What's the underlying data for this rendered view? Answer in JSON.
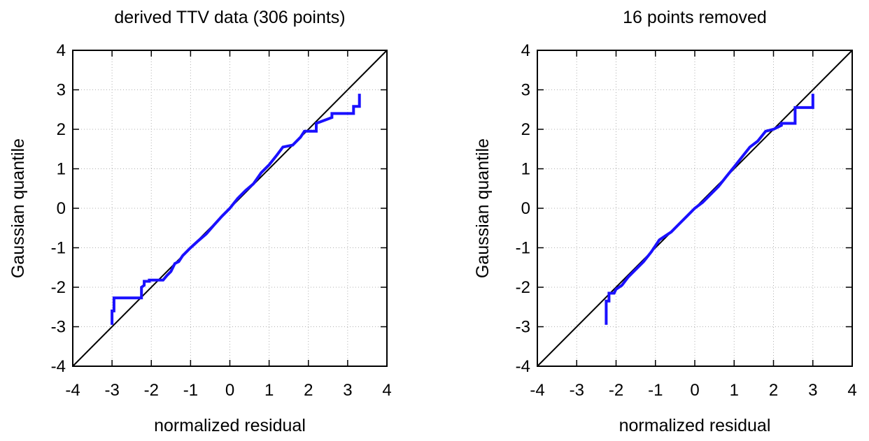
{
  "chart_data": [
    {
      "type": "line",
      "title": "derived TTV data (306 points)",
      "xlabel": "normalized residual",
      "ylabel": "Gaussian quantile",
      "xlim": [
        -4,
        4
      ],
      "ylim": [
        -4,
        4
      ],
      "xticks": [
        "-4",
        "-3",
        "-2",
        "-1",
        "0",
        "1",
        "2",
        "3",
        "4"
      ],
      "yticks": [
        "-4",
        "-3",
        "-2",
        "-1",
        "0",
        "1",
        "2",
        "3",
        "4"
      ],
      "grid": true,
      "reference_line": {
        "from": [
          -4,
          -4
        ],
        "to": [
          4,
          4
        ],
        "color": "#000000"
      },
      "series": [
        {
          "color": "#1a10ff",
          "points": [
            [
              -3.0,
              -2.95
            ],
            [
              -3.0,
              -2.6
            ],
            [
              -2.95,
              -2.6
            ],
            [
              -2.95,
              -2.27
            ],
            [
              -2.25,
              -2.27
            ],
            [
              -2.25,
              -2.0
            ],
            [
              -2.18,
              -1.95
            ],
            [
              -2.18,
              -1.85
            ],
            [
              -2.05,
              -1.85
            ],
            [
              -2.05,
              -1.82
            ],
            [
              -1.7,
              -1.82
            ],
            [
              -1.6,
              -1.7
            ],
            [
              -1.5,
              -1.6
            ],
            [
              -1.4,
              -1.4
            ],
            [
              -1.3,
              -1.35
            ],
            [
              -1.2,
              -1.2
            ],
            [
              -1.0,
              -1.0
            ],
            [
              -0.8,
              -0.82
            ],
            [
              -0.6,
              -0.65
            ],
            [
              -0.4,
              -0.42
            ],
            [
              -0.2,
              -0.2
            ],
            [
              0.0,
              0.0
            ],
            [
              0.2,
              0.25
            ],
            [
              0.4,
              0.45
            ],
            [
              0.6,
              0.62
            ],
            [
              0.8,
              0.9
            ],
            [
              1.0,
              1.1
            ],
            [
              1.2,
              1.35
            ],
            [
              1.35,
              1.55
            ],
            [
              1.6,
              1.6
            ],
            [
              1.8,
              1.8
            ],
            [
              1.9,
              1.95
            ],
            [
              2.2,
              1.95
            ],
            [
              2.2,
              2.15
            ],
            [
              2.6,
              2.3
            ],
            [
              2.6,
              2.4
            ],
            [
              3.15,
              2.4
            ],
            [
              3.15,
              2.58
            ],
            [
              3.3,
              2.58
            ],
            [
              3.3,
              2.9
            ]
          ]
        }
      ]
    },
    {
      "type": "line",
      "title": "16 points removed",
      "xlabel": "normalized residual",
      "ylabel": "Gaussian quantile",
      "xlim": [
        -4,
        4
      ],
      "ylim": [
        -4,
        4
      ],
      "xticks": [
        "-4",
        "-3",
        "-2",
        "-1",
        "0",
        "1",
        "2",
        "3",
        "4"
      ],
      "yticks": [
        "-4",
        "-3",
        "-2",
        "-1",
        "0",
        "1",
        "2",
        "3",
        "4"
      ],
      "grid": true,
      "reference_line": {
        "from": [
          -4,
          -4
        ],
        "to": [
          4,
          4
        ],
        "color": "#000000"
      },
      "series": [
        {
          "color": "#1a10ff",
          "points": [
            [
              -2.25,
              -2.95
            ],
            [
              -2.25,
              -2.35
            ],
            [
              -2.18,
              -2.35
            ],
            [
              -2.18,
              -2.15
            ],
            [
              -2.05,
              -2.15
            ],
            [
              -2.0,
              -2.05
            ],
            [
              -1.85,
              -1.95
            ],
            [
              -1.7,
              -1.75
            ],
            [
              -1.5,
              -1.55
            ],
            [
              -1.3,
              -1.35
            ],
            [
              -1.1,
              -1.1
            ],
            [
              -0.9,
              -0.8
            ],
            [
              -0.6,
              -0.6
            ],
            [
              -0.4,
              -0.4
            ],
            [
              -0.2,
              -0.2
            ],
            [
              0.0,
              0.0
            ],
            [
              0.2,
              0.15
            ],
            [
              0.4,
              0.35
            ],
            [
              0.6,
              0.55
            ],
            [
              0.8,
              0.8
            ],
            [
              1.0,
              1.05
            ],
            [
              1.2,
              1.3
            ],
            [
              1.4,
              1.55
            ],
            [
              1.6,
              1.7
            ],
            [
              1.8,
              1.95
            ],
            [
              2.0,
              2.0
            ],
            [
              2.2,
              2.1
            ],
            [
              2.2,
              2.15
            ],
            [
              2.55,
              2.15
            ],
            [
              2.55,
              2.55
            ],
            [
              3.0,
              2.55
            ],
            [
              3.0,
              2.9
            ]
          ]
        }
      ]
    }
  ]
}
